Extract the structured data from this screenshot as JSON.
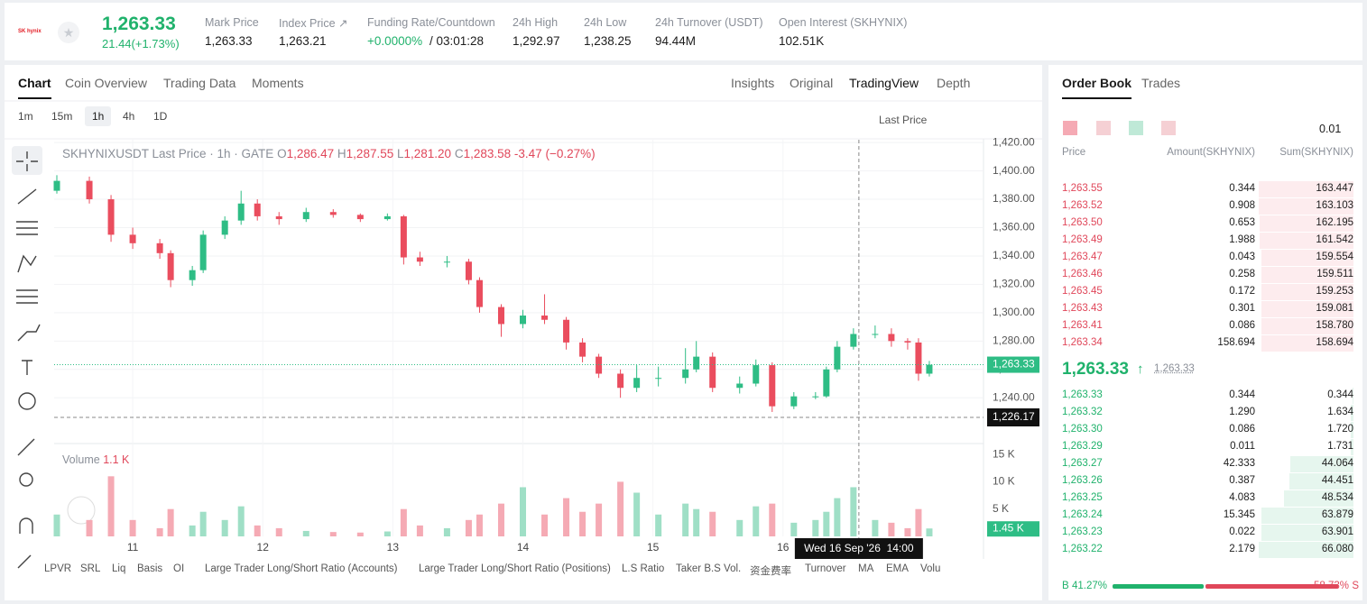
{
  "header": {
    "logo": "SK hynix",
    "price": "1,263.33",
    "change": "21.44(+1.73%)",
    "stats": [
      {
        "label": "Mark Price",
        "value": "1,263.33"
      },
      {
        "label": "Index Price ↗",
        "value": "1,263.21"
      },
      {
        "label": "Funding Rate/Countdown",
        "value": "+0.0000%",
        "extra": "/ 03:01:28"
      },
      {
        "label": "24h High",
        "value": "1,292.97"
      },
      {
        "label": "24h Low",
        "value": "1,238.25"
      },
      {
        "label": "24h Turnover (USDT)",
        "value": "94.44M"
      },
      {
        "label": "Open Interest (SKHYNIX)",
        "value": "102.51K"
      }
    ]
  },
  "tabs": [
    "Chart",
    "Coin Overview",
    "Trading Data",
    "Moments"
  ],
  "views": [
    "Insights",
    "Original",
    "TradingView",
    "Depth"
  ],
  "intervals": [
    "1m",
    "15m",
    "1h",
    "4h",
    "1D"
  ],
  "price_source": "Last Price",
  "indicators": [
    "LPVR",
    "SRL",
    "Liq",
    "Basis",
    "OI",
    "Large Trader Long/Short Ratio (Accounts)",
    "Large Trader Long/Short Ratio (Positions)",
    "L.S Ratio",
    "Taker B.S Vol.",
    "资金费率",
    "Turnover",
    "MA",
    "EMA",
    "Volu"
  ],
  "chart_data": {
    "type": "candlestick",
    "title": "SKHYNIXUSDT Last Price · 1h · GATE",
    "legend": {
      "o": "O",
      "open": "1,286.47",
      "h": "H",
      "high": "1,287.55",
      "l": "L",
      "low": "1,281.20",
      "c": "C",
      "close": "1,283.58",
      "change": "-3.47 (−0.27%)"
    },
    "up_color": "#2ebd85",
    "down_color": "#ea4d5e",
    "up_volume_color": "#9fdfc6",
    "down_volume_color": "#f5aab4",
    "x": [
      10,
      16,
      20,
      24,
      29,
      31,
      35,
      37,
      41,
      44,
      47,
      51,
      56,
      61,
      66,
      71,
      74,
      77,
      82,
      86,
      88,
      92,
      96,
      100,
      104,
      107,
      110,
      114,
      117,
      121,
      126,
      128,
      131,
      136,
      139,
      142,
      146,
      150,
      152,
      154,
      157,
      161,
      164,
      167,
      169,
      171
    ],
    "open": [
      1386,
      1393,
      1380,
      1355,
      1349,
      1342,
      1323,
      1330,
      1355,
      1365,
      1377,
      1368,
      1366,
      1371,
      1369,
      1366,
      1368,
      1339,
      1336,
      1336,
      1323,
      1304,
      1292,
      1298,
      1295,
      1279,
      1269,
      1257,
      1247,
      1254,
      1254,
      1260,
      1269,
      1247,
      1250,
      1263,
      1234,
      1241,
      1241,
      1260,
      1276,
      1285,
      1285,
      1280,
      1279,
      1257
    ],
    "high": [
      1397,
      1396,
      1383,
      1360,
      1352,
      1344,
      1333,
      1358,
      1368,
      1386,
      1380,
      1371,
      1374,
      1373,
      1370,
      1370,
      1369,
      1343,
      1340,
      1338,
      1325,
      1306,
      1302,
      1313,
      1297,
      1282,
      1271,
      1260,
      1263,
      1262,
      1275,
      1280,
      1272,
      1255,
      1267,
      1265,
      1244,
      1244,
      1262,
      1280,
      1289,
      1291,
      1289,
      1282,
      1282,
      1266
    ],
    "low": [
      1384,
      1377,
      1350,
      1345,
      1338,
      1318,
      1319,
      1328,
      1352,
      1362,
      1365,
      1362,
      1364,
      1367,
      1364,
      1365,
      1334,
      1333,
      1332,
      1320,
      1300,
      1283,
      1289,
      1292,
      1274,
      1265,
      1254,
      1240,
      1244,
      1248,
      1250,
      1258,
      1244,
      1243,
      1248,
      1230,
      1232,
      1239,
      1240,
      1258,
      1274,
      1282,
      1276,
      1274,
      1252,
      1255
    ],
    "close": [
      1393,
      1380,
      1355,
      1349,
      1342,
      1323,
      1330,
      1355,
      1365,
      1377,
      1368,
      1366,
      1371,
      1369,
      1366,
      1368,
      1339,
      1336,
      1336,
      1323,
      1304,
      1292,
      1298,
      1295,
      1279,
      1269,
      1257,
      1247,
      1254,
      1254,
      1260,
      1269,
      1247,
      1250,
      1263,
      1234,
      1241,
      1241,
      1260,
      1276,
      1285,
      1285,
      1280,
      1279,
      1257,
      1263.33
    ],
    "volume": [
      4000,
      3000,
      11000,
      3000,
      1500,
      5000,
      2000,
      4500,
      3000,
      5500,
      2000,
      1500,
      1000,
      800,
      700,
      900,
      5000,
      2000,
      1500,
      3000,
      4000,
      6000,
      9000,
      4000,
      7000,
      4500,
      6000,
      10000,
      8000,
      4000,
      6000,
      5000,
      4500,
      3000,
      5500,
      6000,
      2500,
      3000,
      4500,
      7000,
      9000,
      3000,
      2500,
      1500,
      5000,
      1450
    ],
    "xlim": [
      9.5,
      181
    ],
    "xticks": [
      {
        "value": 24,
        "label": "11"
      },
      {
        "value": 48,
        "label": "12"
      },
      {
        "value": 72,
        "label": "13"
      },
      {
        "value": 96,
        "label": "14"
      },
      {
        "value": 120,
        "label": "15"
      },
      {
        "value": 144,
        "label": "16"
      }
    ],
    "ylim": [
      1209,
      1422
    ],
    "yticks": [
      {
        "value": 1240,
        "label": "1,240.00"
      },
      {
        "value": 1260,
        "label": "1,260.00"
      },
      {
        "value": 1280,
        "label": "1,280.00"
      },
      {
        "value": 1300,
        "label": "1,300.00"
      },
      {
        "value": 1320,
        "label": "1,320.00"
      },
      {
        "value": 1340,
        "label": "1,340.00"
      },
      {
        "value": 1360,
        "label": "1,360.00"
      },
      {
        "value": 1380,
        "label": "1,380.00"
      },
      {
        "value": 1400,
        "label": "1,400.00"
      },
      {
        "value": 1420,
        "label": "1,420.00"
      }
    ],
    "last_price": {
      "value": 1263.33,
      "label": "1,263.33"
    },
    "crosshair": {
      "x": 158,
      "price": {
        "value": 1226.17,
        "label": "1,226.17"
      },
      "time_label": "Wed 16 Sep '26  14:00"
    },
    "volume_title": "Volume",
    "volume_value": {
      "value": 1100,
      "label": "1.1 K"
    },
    "volume_ylim": [
      0,
      16500
    ],
    "volume_yticks": [
      {
        "value": 5000,
        "label": "5 K"
      },
      {
        "value": 10000,
        "label": "10 K"
      },
      {
        "value": 15000,
        "label": "15 K"
      }
    ],
    "volume_current": {
      "value": 1450,
      "label": "1.45 K"
    }
  },
  "order_book": {
    "tabs": [
      "Order Book",
      "Trades"
    ],
    "precision": "0.01",
    "columns": [
      "Price",
      "Amount(SKHYNIX)",
      "Sum(SKHYNIX)"
    ],
    "asks": [
      [
        "1,263.55",
        "0.344",
        "163.447"
      ],
      [
        "1,263.52",
        "0.908",
        "163.103"
      ],
      [
        "1,263.50",
        "0.653",
        "162.195"
      ],
      [
        "1,263.49",
        "1.988",
        "161.542"
      ],
      [
        "1,263.47",
        "0.043",
        "159.554"
      ],
      [
        "1,263.46",
        "0.258",
        "159.511"
      ],
      [
        "1,263.45",
        "0.172",
        "159.253"
      ],
      [
        "1,263.43",
        "0.301",
        "159.081"
      ],
      [
        "1,263.41",
        "0.086",
        "158.780"
      ],
      [
        "1,263.34",
        "158.694",
        "158.694"
      ]
    ],
    "mid_price": "1,263.33",
    "mid_mark": "1,263.33",
    "bids": [
      [
        "1,263.33",
        "0.344",
        "0.344"
      ],
      [
        "1,263.32",
        "1.290",
        "1.634"
      ],
      [
        "1,263.30",
        "0.086",
        "1.720"
      ],
      [
        "1,263.29",
        "0.011",
        "1.731"
      ],
      [
        "1,263.27",
        "42.333",
        "44.064"
      ],
      [
        "1,263.26",
        "0.387",
        "44.451"
      ],
      [
        "1,263.25",
        "4.083",
        "48.534"
      ],
      [
        "1,263.24",
        "15.345",
        "63.879"
      ],
      [
        "1,263.23",
        "0.022",
        "63.901"
      ],
      [
        "1,263.22",
        "2.179",
        "66.080"
      ]
    ],
    "buy": {
      "letter": "B",
      "value": 41.27,
      "label": "41.27%"
    },
    "sell": {
      "letter": "S",
      "value": 58.73,
      "label": "58.73%"
    }
  }
}
